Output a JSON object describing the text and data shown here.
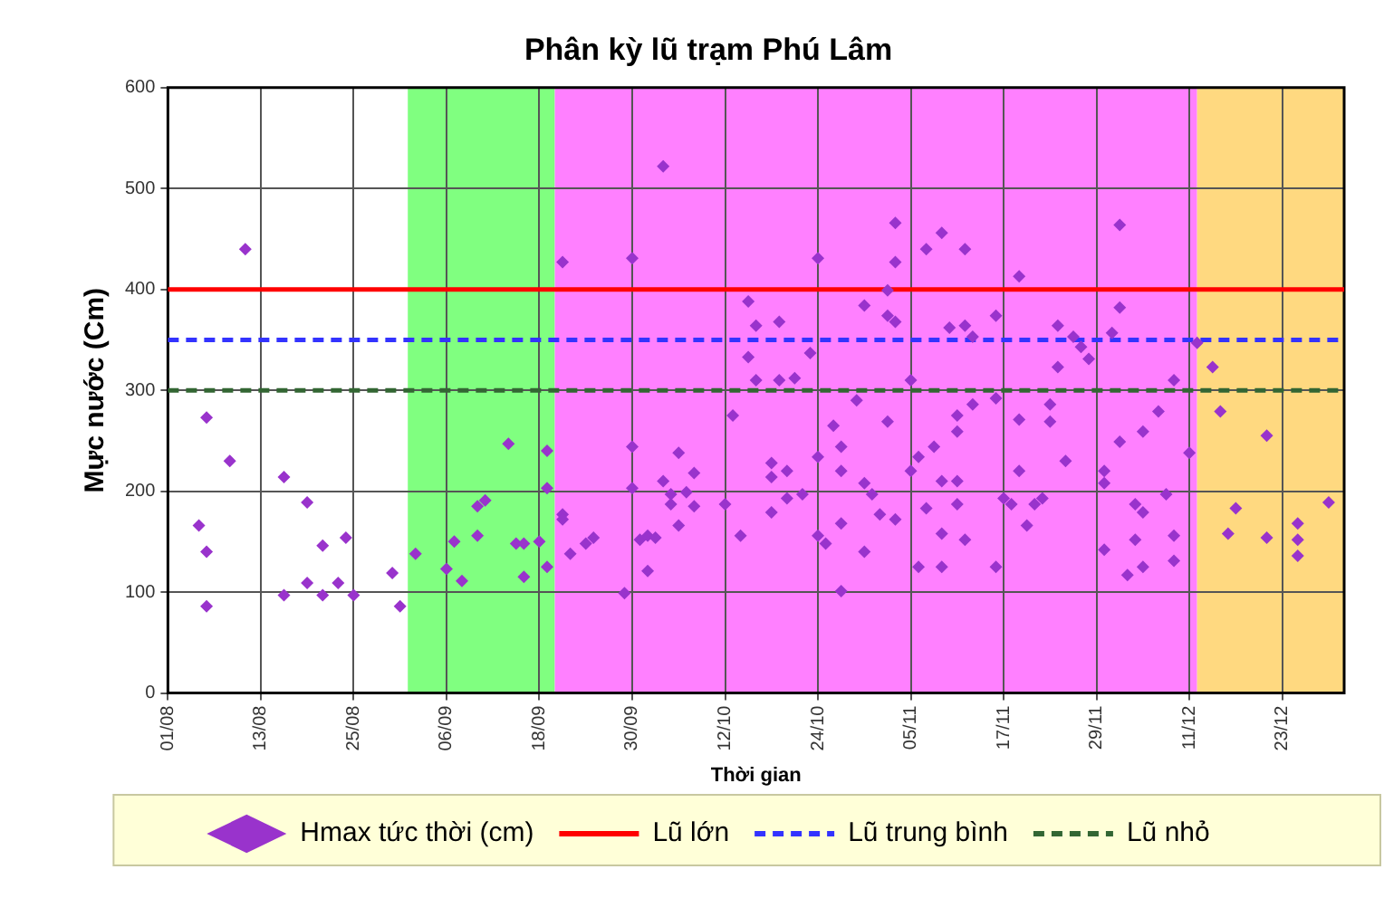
{
  "chart_data": {
    "type": "scatter",
    "title": "Phân kỳ lũ trạm Phú Lâm",
    "xlabel": "Thời gian",
    "ylabel": "Mực nước (Cm)",
    "xlim": [
      "--08-01",
      "--12-31"
    ],
    "xticks": [
      {
        "value": "--08-01",
        "label": "01/08"
      },
      {
        "value": "--08-13",
        "label": "13/08"
      },
      {
        "value": "--08-25",
        "label": "25/08"
      },
      {
        "value": "--09-06",
        "label": "06/09"
      },
      {
        "value": "--09-18",
        "label": "18/09"
      },
      {
        "value": "--09-30",
        "label": "30/09"
      },
      {
        "value": "--10-12",
        "label": "12/10"
      },
      {
        "value": "--10-24",
        "label": "24/10"
      },
      {
        "value": "--11-05",
        "label": "05/11"
      },
      {
        "value": "--11-17",
        "label": "17/11"
      },
      {
        "value": "--11-29",
        "label": "29/11"
      },
      {
        "value": "--12-11",
        "label": "11/12"
      },
      {
        "value": "--12-23",
        "label": "23/12"
      }
    ],
    "ylim": [
      0,
      600
    ],
    "yticks": [
      0,
      100,
      200,
      300,
      400,
      500,
      600
    ],
    "grid": true,
    "legend": "bottom",
    "marker": "diamond",
    "series": [
      {
        "name": "Hmax tức thời (cm)",
        "color": "#9933cc",
        "x": [
          "--08-05",
          "--08-06",
          "--08-06",
          "--08-06",
          "--08-09",
          "--08-11",
          "--08-16",
          "--08-16",
          "--08-19",
          "--08-19",
          "--08-21",
          "--08-21",
          "--08-23",
          "--08-24",
          "--08-25",
          "--08-30",
          "--08-31",
          "--09-02",
          "--09-06",
          "--09-07",
          "--09-08",
          "--09-10",
          "--09-10",
          "--09-11",
          "--09-14",
          "--09-15",
          "--09-16",
          "--09-16",
          "--09-18",
          "--09-19",
          "--09-19",
          "--09-19",
          "--09-21",
          "--09-21",
          "--09-21",
          "--09-22",
          "--09-24",
          "--09-25",
          "--09-29",
          "--09-30",
          "--09-30",
          "--09-30",
          "--10-01",
          "--10-02",
          "--10-02",
          "--10-03",
          "--10-04",
          "--10-04",
          "--10-05",
          "--10-05",
          "--10-06",
          "--10-06",
          "--10-07",
          "--10-08",
          "--10-08",
          "--10-12",
          "--10-13",
          "--10-14",
          "--10-15",
          "--10-15",
          "--10-16",
          "--10-19",
          "--10-16",
          "--10-18",
          "--10-18",
          "--10-18",
          "--10-19",
          "--10-20",
          "--10-21",
          "--10-20",
          "--10-22",
          "--10-23",
          "--10-24",
          "--10-24",
          "--10-24",
          "--10-25",
          "--10-26",
          "--10-27",
          "--10-27",
          "--10-27",
          "--10-27",
          "--10-30",
          "--10-29",
          "--10-30",
          "--10-30",
          "--10-31",
          "--11-01",
          "--11-02",
          "--11-02",
          "--11-02",
          "--11-03",
          "--11-03",
          "--11-03",
          "--11-03",
          "--11-05",
          "--11-05",
          "--11-06",
          "--11-06",
          "--11-07",
          "--11-07",
          "--11-08",
          "--11-09",
          "--11-09",
          "--11-09",
          "--11-09",
          "--11-11",
          "--11-11",
          "--11-11",
          "--11-11",
          "--11-12",
          "--11-12",
          "--11-13",
          "--11-10",
          "--11-12",
          "--11-13",
          "--11-16",
          "--11-16",
          "--11-16",
          "--11-17",
          "--11-18",
          "--11-19",
          "--11-19",
          "--11-19",
          "--11-20",
          "--11-21",
          "--11-22",
          "--11-23",
          "--11-23",
          "--11-24",
          "--11-24",
          "--11-25",
          "--11-26",
          "--11-27",
          "--11-28",
          "--11-30",
          "--11-30",
          "--11-30",
          "--12-01",
          "--12-02",
          "--12-02",
          "--12-02",
          "--12-03",
          "--12-04",
          "--12-04",
          "--12-05",
          "--12-05",
          "--12-05",
          "--12-07",
          "--12-08",
          "--12-09",
          "--12-09",
          "--12-09",
          "--12-11",
          "--12-12",
          "--12-14",
          "--12-15",
          "--12-16",
          "--12-17",
          "--12-21",
          "--12-21",
          "--12-25",
          "--12-25",
          "--12-25",
          "--12-29"
        ],
        "values": [
          166,
          140,
          86,
          273,
          230,
          440,
          214,
          97,
          189,
          109,
          146,
          97,
          109,
          154,
          97,
          119,
          86,
          138,
          123,
          150,
          111,
          156,
          185,
          191,
          247,
          148,
          115,
          148,
          150,
          240,
          203,
          125,
          427,
          177,
          172,
          138,
          148,
          154,
          99,
          431,
          244,
          203,
          152,
          156,
          121,
          154,
          210,
          522,
          197,
          187,
          238,
          166,
          199,
          218,
          185,
          187,
          275,
          156,
          333,
          388,
          364,
          368,
          310,
          228,
          214,
          179,
          310,
          220,
          312,
          193,
          197,
          337,
          431,
          234,
          156,
          148,
          265,
          168,
          244,
          220,
          101,
          384,
          290,
          208,
          140,
          197,
          177,
          399,
          269,
          374,
          368,
          466,
          427,
          172,
          220,
          310,
          125,
          234,
          440,
          183,
          244,
          158,
          456,
          125,
          210,
          275,
          259,
          187,
          210,
          152,
          440,
          286,
          362,
          364,
          353,
          374,
          292,
          125,
          193,
          187,
          413,
          271,
          220,
          166,
          187,
          193,
          286,
          269,
          323,
          364,
          230,
          353,
          343,
          331,
          220,
          208,
          142,
          357,
          464,
          382,
          249,
          117,
          187,
          152,
          259,
          179,
          125,
          279,
          197,
          156,
          131,
          310,
          238,
          347,
          323,
          279,
          158,
          183,
          255,
          154,
          168,
          152,
          136,
          189
        ]
      }
    ],
    "ref_lines": [
      {
        "axis": "y",
        "value": 400,
        "label": "Lũ lớn",
        "color": "#ff0000",
        "line_style": "solid"
      },
      {
        "axis": "y",
        "value": 350,
        "label": "Lũ trung bình",
        "color": "#3333ff",
        "line_style": "dashed"
      },
      {
        "axis": "y",
        "value": 300,
        "label": "Lũ nhỏ",
        "color": "#336633",
        "line_style": "dashed"
      }
    ],
    "bands": [
      {
        "axis": "x",
        "from": "--09-01",
        "to": "--09-20",
        "color": "#80ff80"
      },
      {
        "axis": "x",
        "from": "--09-20",
        "to": "--12-12",
        "color": "#ff80ff"
      },
      {
        "axis": "x",
        "from": "--12-12",
        "to": "--12-31",
        "color": "#ffd980"
      }
    ]
  }
}
